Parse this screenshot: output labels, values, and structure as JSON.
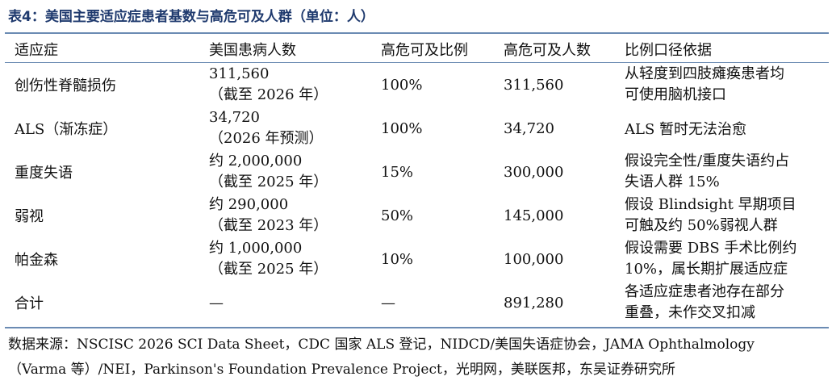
{
  "title": "表4：美国主要适应症患者基数与高危可及人群（单位：人）",
  "columns": [
    "适应症",
    "美国患病人数",
    "高危可及比例",
    "高危可及人数",
    "比例口径依据"
  ],
  "rows": [
    {
      "indication": "创伤性脊髓损伤",
      "patients": [
        "311,560",
        "（截至 2026 年）"
      ],
      "ratio": "100%",
      "reachable": "311,560",
      "basis": [
        "从轻度到四肢瘫痪患者均",
        "可使用脑机接口"
      ]
    },
    {
      "indication": "ALS（渐冻症）",
      "patients": [
        "34,720",
        "（2026 年预测）"
      ],
      "ratio": "100%",
      "reachable": "34,720",
      "basis": [
        "ALS 暂时无法治愈",
        ""
      ]
    },
    {
      "indication": "重度失语",
      "patients": [
        "约 2,000,000",
        "（截至 2025 年）"
      ],
      "ratio": "15%",
      "reachable": "300,000",
      "basis": [
        "假设完全性/重度失语约占",
        "失语人群 15%"
      ]
    },
    {
      "indication": "弱视",
      "patients": [
        "约 290,000",
        "（截至 2023 年）"
      ],
      "ratio": "50%",
      "reachable": "145,000",
      "basis": [
        "假设 Blindsight 早期项目",
        "可触及约 50%弱视人群"
      ]
    },
    {
      "indication": "帕金森",
      "patients": [
        "约 1,000,000",
        "（截至 2025 年）"
      ],
      "ratio": "10%",
      "reachable": "100,000",
      "basis": [
        "假设需要 DBS 手术比例约",
        "10%，属长期扩展适应症"
      ]
    },
    {
      "indication": "合计",
      "patients": [
        "—",
        ""
      ],
      "ratio": "—",
      "reachable": "891,280",
      "basis": [
        "各适应症患者池存在部分",
        "重叠，未作交叉扣减"
      ]
    }
  ],
  "source_lines": [
    "数据来源：NSCISC 2026 SCI Data Sheet，CDC 国家 ALS 登记，NIDCD/美国失语症协会，JAMA Ophthalmology",
    "（Varma 等）/NEI，Parkinson's Foundation Prevalence Project，光明网，美联医邦，东吴证券研究所"
  ]
}
